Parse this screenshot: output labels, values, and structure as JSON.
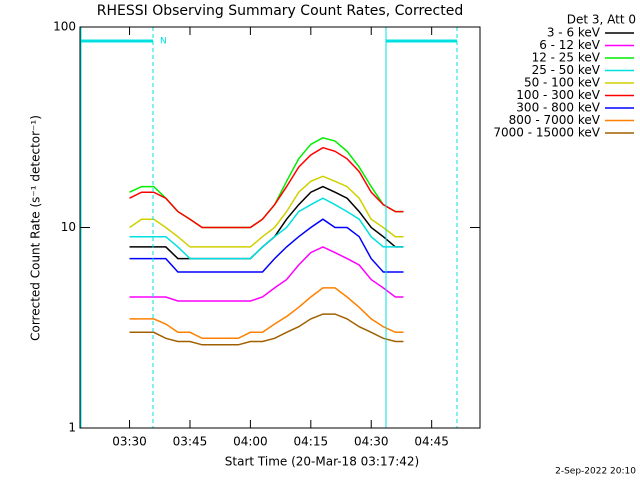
{
  "chart_data": {
    "type": "line",
    "title": "RHESSI Observing Summary Count Rates, Corrected",
    "xlabel": "Start Time (20-Mar-18 03:17:42)",
    "ylabel": "Corrected Count Rate (s⁻¹ detector⁻¹)",
    "legend_title": "Det 3, Att 0",
    "annotation": "N",
    "footer": "2-Sep-2022 20:10",
    "log_y": true,
    "xlim": [
      17.7,
      117
    ],
    "ylim": [
      1,
      100
    ],
    "yticks": [
      1,
      10,
      100
    ],
    "xticks": [
      {
        "value": 30,
        "label": "03:30"
      },
      {
        "value": 45,
        "label": "03:45"
      },
      {
        "value": 60,
        "label": "04:00"
      },
      {
        "value": 75,
        "label": "04:15"
      },
      {
        "value": 90,
        "label": "04:30"
      },
      {
        "value": 105,
        "label": "04:45"
      }
    ],
    "x": [
      30,
      33,
      36,
      39,
      42,
      45,
      48,
      51,
      54,
      57,
      60,
      63,
      66,
      69,
      72,
      75,
      78,
      81,
      84,
      87,
      90,
      93,
      96,
      98
    ],
    "series": [
      {
        "name": "3 - 6 keV",
        "color": "#000000",
        "values": [
          8,
          8,
          8,
          8,
          7,
          7,
          7,
          7,
          7,
          7,
          7,
          8,
          9,
          11,
          13,
          15,
          16,
          15,
          14,
          12,
          10,
          9,
          8,
          8
        ]
      },
      {
        "name": "6 - 12 keV",
        "color": "#ff00ff",
        "values": [
          4.5,
          4.5,
          4.5,
          4.5,
          4.3,
          4.3,
          4.3,
          4.3,
          4.3,
          4.3,
          4.3,
          4.5,
          5,
          5.5,
          6.5,
          7.5,
          8,
          7.5,
          7,
          6.5,
          5.5,
          5,
          4.5,
          4.5
        ]
      },
      {
        "name": "12 - 25 keV",
        "color": "#00ee00",
        "values": [
          15,
          16,
          16,
          14,
          12,
          11,
          10,
          10,
          10,
          10,
          10,
          11,
          13,
          17,
          22,
          26,
          28,
          27,
          24,
          20,
          16,
          13,
          12,
          12
        ]
      },
      {
        "name": "25 - 50 keV",
        "color": "#00e0e0",
        "values": [
          9,
          9,
          9,
          9,
          8,
          7,
          7,
          7,
          7,
          7,
          7,
          8,
          9,
          10,
          12,
          13,
          14,
          13,
          12,
          11,
          9,
          8,
          8,
          8
        ]
      },
      {
        "name": "50 - 100 keV",
        "color": "#d0d000",
        "values": [
          10,
          11,
          11,
          10,
          9,
          8,
          8,
          8,
          8,
          8,
          8,
          9,
          10,
          12,
          15,
          17,
          18,
          17,
          16,
          14,
          11,
          10,
          9,
          9
        ]
      },
      {
        "name": "100 - 300 keV",
        "color": "#ff0000",
        "values": [
          14,
          15,
          15,
          14,
          12,
          11,
          10,
          10,
          10,
          10,
          10,
          11,
          13,
          16,
          20,
          23,
          25,
          24,
          22,
          19,
          15,
          13,
          12,
          12
        ]
      },
      {
        "name": "300 - 800 keV",
        "color": "#0000ff",
        "values": [
          7,
          7,
          7,
          7,
          6,
          6,
          6,
          6,
          6,
          6,
          6,
          6,
          7,
          8,
          9,
          10,
          11,
          10,
          10,
          9,
          7,
          6,
          6,
          6
        ]
      },
      {
        "name": "800 - 7000 keV",
        "color": "#ff8000",
        "values": [
          3.5,
          3.5,
          3.5,
          3.3,
          3,
          3,
          2.8,
          2.8,
          2.8,
          2.8,
          3,
          3,
          3.3,
          3.6,
          4,
          4.5,
          5,
          5,
          4.5,
          4,
          3.5,
          3.2,
          3,
          3
        ]
      },
      {
        "name": "7000 - 15000 keV",
        "color": "#a06000",
        "values": [
          3,
          3,
          3,
          2.8,
          2.7,
          2.7,
          2.6,
          2.6,
          2.6,
          2.6,
          2.7,
          2.7,
          2.8,
          3,
          3.2,
          3.5,
          3.7,
          3.7,
          3.5,
          3.2,
          3,
          2.8,
          2.7,
          2.7
        ]
      }
    ]
  }
}
